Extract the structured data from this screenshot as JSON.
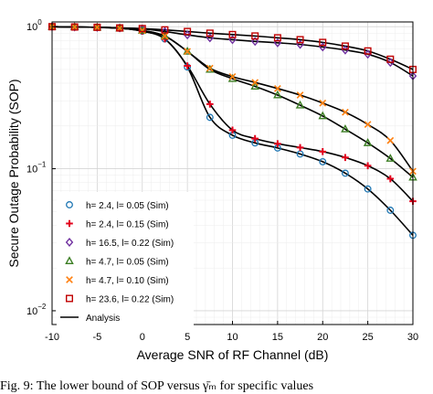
{
  "chart_data": {
    "type": "line",
    "xlabel": "Average SNR of RF Channel (dB)",
    "ylabel": "Secure Outage Probability (SOP)",
    "xlim": [
      -10,
      30
    ],
    "ylim": [
      0.008,
      1.08
    ],
    "y_scale": "log",
    "grid": true,
    "legend_position": "bottom-left",
    "x_ticks": [
      -10,
      -5,
      0,
      5,
      10,
      15,
      20,
      25,
      30
    ],
    "x_tick_labels": [
      "-10",
      "-5",
      "0",
      "5",
      "10",
      "15",
      "20",
      "25",
      "30"
    ],
    "y_ticks": [
      1,
      0.1,
      0.01
    ],
    "y_tick_labels": [
      {
        "base": "10",
        "exp": "0"
      },
      {
        "base": "10",
        "exp": "−1"
      },
      {
        "base": "10",
        "exp": "−2"
      }
    ],
    "series": [
      {
        "name": "h= 2.4, l= 0.05 (Sim)",
        "marker": "circle",
        "color": "#1f77b4",
        "x": [
          -10,
          -7.5,
          -5,
          -2.5,
          0,
          2.5,
          5,
          7.5,
          10,
          12.5,
          15,
          17.5,
          20,
          22.5,
          25,
          27.5,
          30
        ],
        "y": [
          1.0,
          0.995,
          0.99,
          0.975,
          0.93,
          0.82,
          0.52,
          0.23,
          0.172,
          0.152,
          0.14,
          0.127,
          0.112,
          0.093,
          0.072,
          0.051,
          0.034
        ]
      },
      {
        "name": "h= 2.4, l= 0.15 (Sim)",
        "marker": "plus",
        "color": "#e3001b",
        "x": [
          -10,
          -7.5,
          -5,
          -2.5,
          0,
          2.5,
          5,
          7.5,
          10,
          12.5,
          15,
          17.5,
          20,
          22.5,
          25,
          27.5,
          30
        ],
        "y": [
          1.0,
          0.995,
          0.99,
          0.975,
          0.93,
          0.82,
          0.53,
          0.285,
          0.187,
          0.163,
          0.15,
          0.141,
          0.132,
          0.12,
          0.105,
          0.085,
          0.059
        ]
      },
      {
        "name": "h= 16.5, l= 0.22 (Sim)",
        "marker": "diamond",
        "color": "#7030a0",
        "x": [
          -10,
          -7.5,
          -5,
          -2.5,
          0,
          2.5,
          5,
          7.5,
          10,
          12.5,
          15,
          17.5,
          20,
          22.5,
          25,
          27.5,
          30
        ],
        "y": [
          1.0,
          0.995,
          0.99,
          0.98,
          0.965,
          0.925,
          0.875,
          0.835,
          0.81,
          0.788,
          0.77,
          0.75,
          0.72,
          0.685,
          0.64,
          0.56,
          0.45
        ]
      },
      {
        "name": "h= 4.7, l= 0.05 (Sim)",
        "marker": "triangle",
        "color": "#3a7d22",
        "x": [
          -10,
          -7.5,
          -5,
          -2.5,
          0,
          2.5,
          5,
          7.5,
          10,
          12.5,
          15,
          17.5,
          20,
          22.5,
          25,
          27.5,
          30
        ],
        "y": [
          1.0,
          0.995,
          0.99,
          0.975,
          0.94,
          0.86,
          0.67,
          0.5,
          0.43,
          0.38,
          0.33,
          0.28,
          0.235,
          0.19,
          0.152,
          0.118,
          0.087
        ]
      },
      {
        "name": "h= 4.7, l= 0.10 (Sim)",
        "marker": "x",
        "color": "#ff7f0e",
        "x": [
          -10,
          -7.5,
          -5,
          -2.5,
          0,
          2.5,
          5,
          7.5,
          10,
          12.5,
          15,
          17.5,
          20,
          22.5,
          25,
          27.5,
          30
        ],
        "y": [
          1.0,
          0.995,
          0.99,
          0.975,
          0.94,
          0.86,
          0.67,
          0.51,
          0.445,
          0.405,
          0.367,
          0.33,
          0.29,
          0.25,
          0.205,
          0.158,
          0.096
        ]
      },
      {
        "name": "h= 23.6, l= 0.22 (Sim)",
        "marker": "square",
        "color": "#c00000",
        "x": [
          -10,
          -7.5,
          -5,
          -2.5,
          0,
          2.5,
          5,
          7.5,
          10,
          12.5,
          15,
          17.5,
          20,
          22.5,
          25,
          27.5,
          30
        ],
        "y": [
          1.0,
          0.995,
          0.99,
          0.98,
          0.97,
          0.95,
          0.925,
          0.9,
          0.88,
          0.86,
          0.835,
          0.81,
          0.775,
          0.73,
          0.675,
          0.59,
          0.5
        ]
      },
      {
        "name": "Analysis",
        "marker": "none",
        "color": "#000000"
      }
    ]
  },
  "caption": "Fig. 9: The lower bound of SOP versus γ̄ₘ for specific values"
}
